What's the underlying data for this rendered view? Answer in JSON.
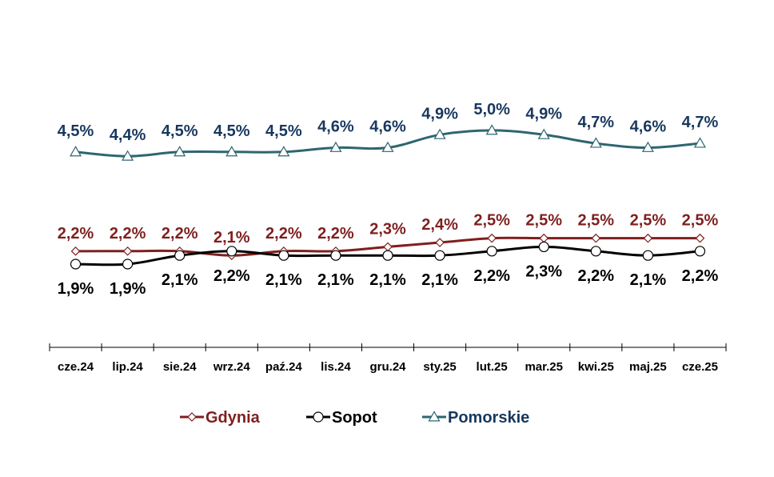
{
  "chart_data": {
    "type": "line",
    "categories": [
      "cze.24",
      "lip.24",
      "sie.24",
      "wrz.24",
      "paź.24",
      "lis.24",
      "gru.24",
      "sty.25",
      "lut.25",
      "mar.25",
      "kwi.25",
      "maj.25",
      "cze.25"
    ],
    "ylim": [
      0,
      6
    ],
    "grid": false,
    "legend_position": "bottom",
    "series": [
      {
        "name": "Gdynia",
        "color": "#7f1f1f",
        "marker": "diamond",
        "values": [
          2.2,
          2.2,
          2.2,
          2.1,
          2.2,
          2.2,
          2.3,
          2.4,
          2.5,
          2.5,
          2.5,
          2.5,
          2.5
        ],
        "labels": [
          "2,2%",
          "2,2%",
          "2,2%",
          "2,1%",
          "2,2%",
          "2,2%",
          "2,3%",
          "2,4%",
          "2,5%",
          "2,5%",
          "2,5%",
          "2,5%",
          "2,5%"
        ]
      },
      {
        "name": "Sopot",
        "color": "#000000",
        "marker": "circle",
        "values": [
          1.9,
          1.9,
          2.1,
          2.2,
          2.1,
          2.1,
          2.1,
          2.1,
          2.2,
          2.3,
          2.2,
          2.1,
          2.2
        ],
        "labels": [
          "1,9%",
          "1,9%",
          "2,1%",
          "2,2%",
          "2,1%",
          "2,1%",
          "2,1%",
          "2,1%",
          "2,2%",
          "2,3%",
          "2,2%",
          "2,1%",
          "2,2%"
        ]
      },
      {
        "name": "Pomorskie",
        "color": "#2e6670",
        "label_color": "#17375e",
        "marker": "triangle",
        "values": [
          4.5,
          4.4,
          4.5,
          4.5,
          4.5,
          4.6,
          4.6,
          4.9,
          5.0,
          4.9,
          4.7,
          4.6,
          4.7
        ],
        "labels": [
          "4,5%",
          "4,4%",
          "4,5%",
          "4,5%",
          "4,5%",
          "4,6%",
          "4,6%",
          "4,9%",
          "5,0%",
          "4,9%",
          "4,7%",
          "4,6%",
          "4,7%"
        ]
      }
    ]
  }
}
